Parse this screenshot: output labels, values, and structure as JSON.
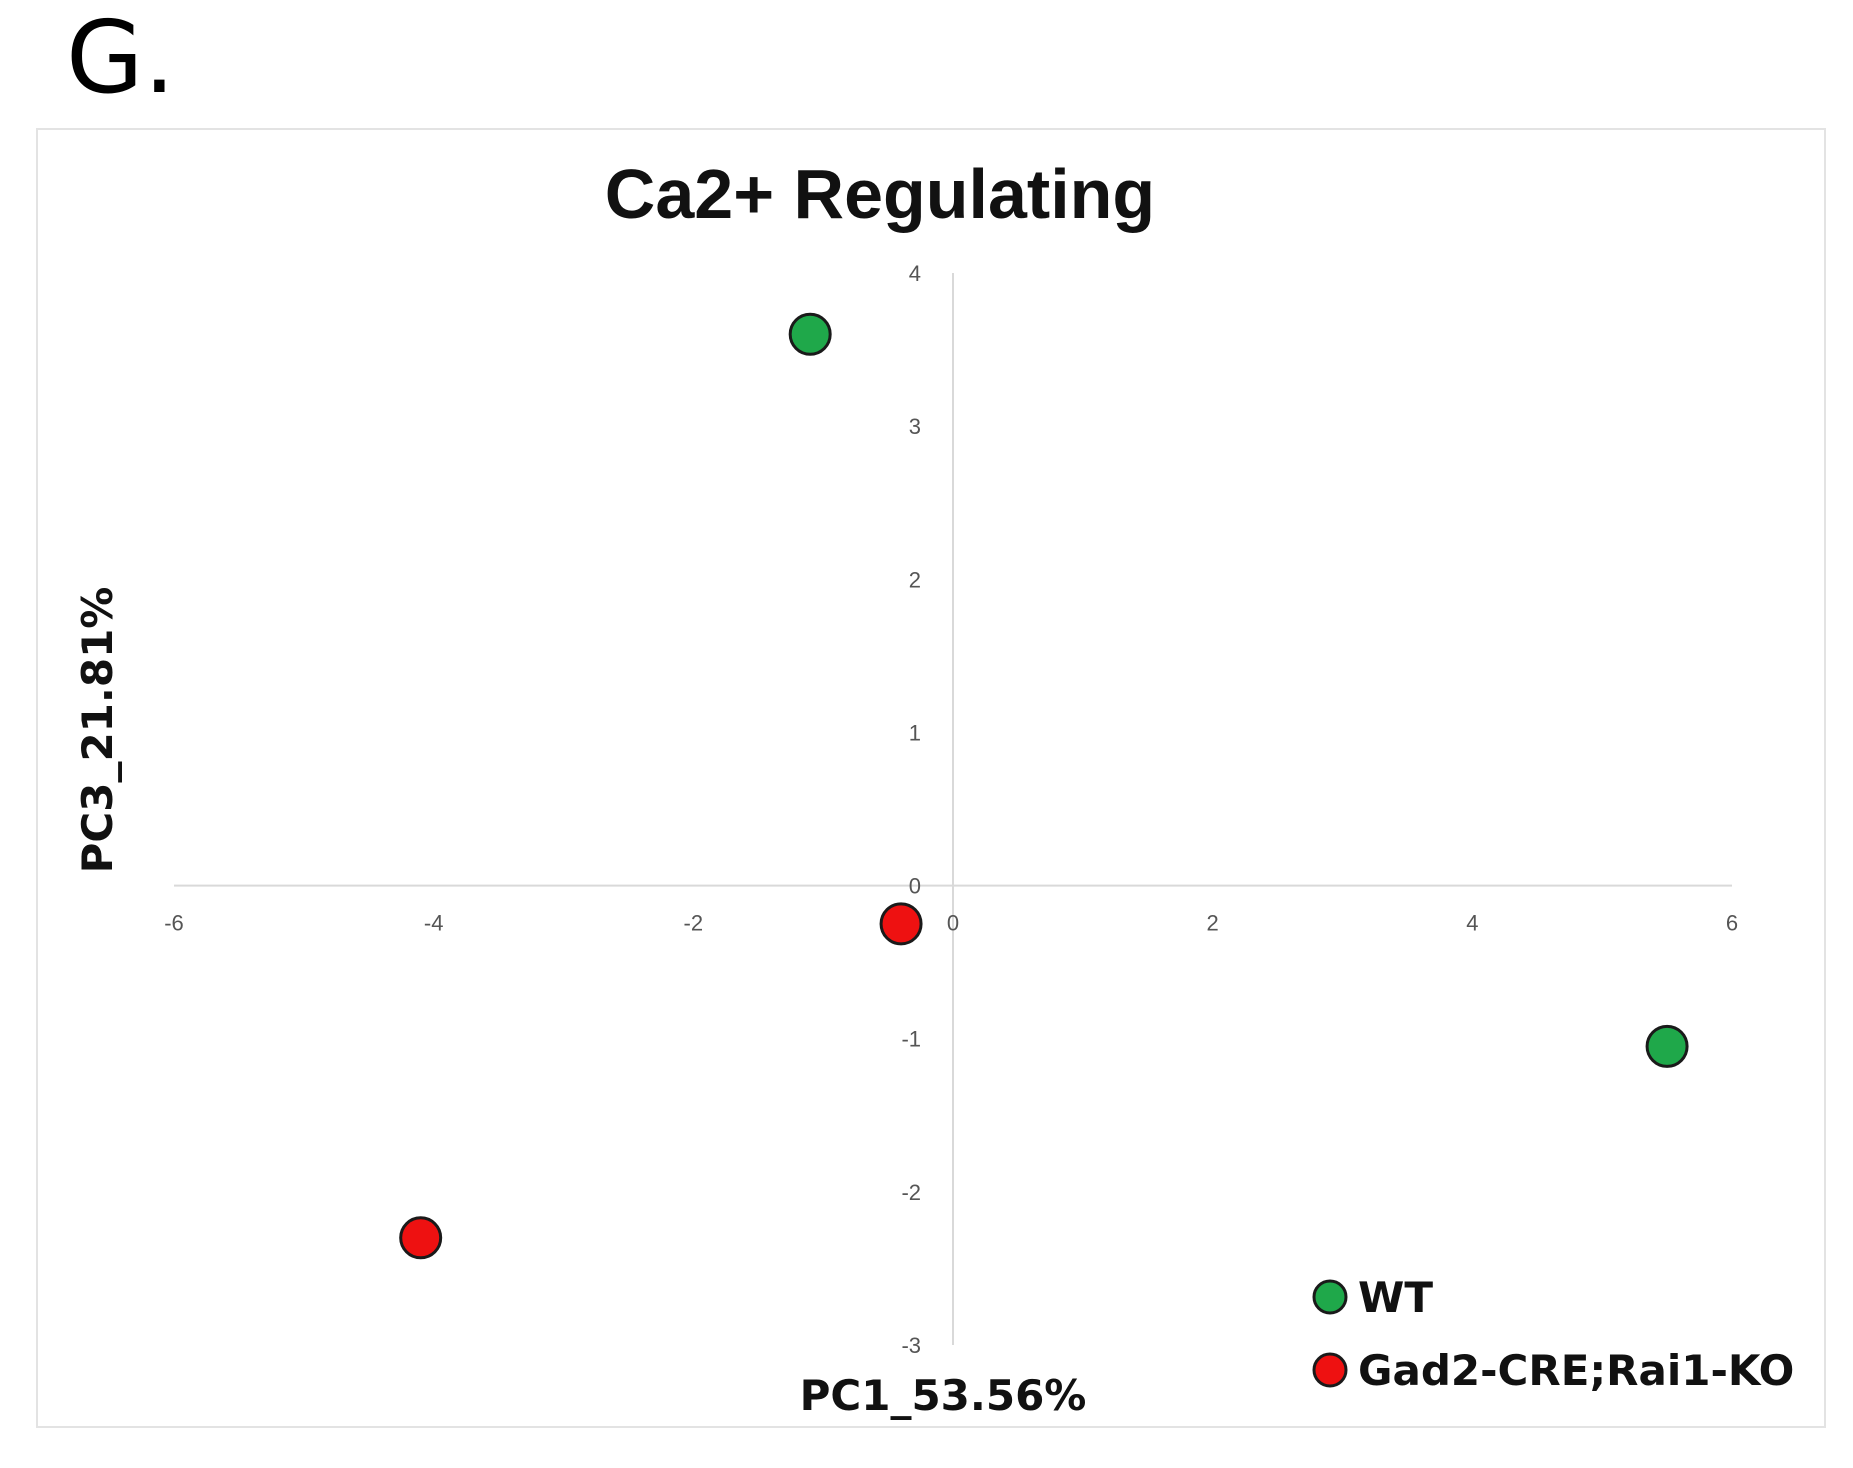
{
  "panel_label": "G.",
  "chart_data": {
    "type": "scatter",
    "title": "Ca2+ Regulating",
    "xlabel": "PC1_53.56%",
    "ylabel": "PC3_21.81%",
    "xlim": [
      -6,
      6
    ],
    "ylim": [
      -3,
      4
    ],
    "x_ticks": [
      -6,
      -4,
      -2,
      0,
      2,
      4,
      6
    ],
    "y_ticks": [
      -3,
      -2,
      -1,
      0,
      1,
      2,
      3,
      4
    ],
    "grid": false,
    "legend_position": "bottom-right",
    "series": [
      {
        "name": "WT",
        "color": "#1fa84a",
        "points": [
          {
            "x": -1.1,
            "y": 3.6
          },
          {
            "x": 5.5,
            "y": -1.05
          }
        ]
      },
      {
        "name": "Gad2-CRE;Rai1-KO",
        "color": "#ee1111",
        "points": [
          {
            "x": -4.1,
            "y": -2.3
          },
          {
            "x": -0.4,
            "y": -0.25
          }
        ]
      }
    ]
  }
}
